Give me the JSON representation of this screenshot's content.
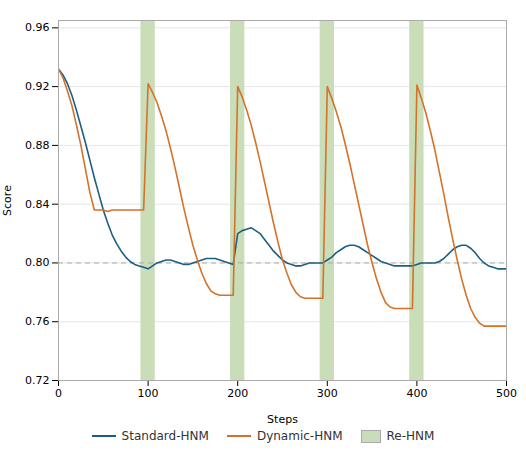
{
  "chart_data": {
    "type": "line",
    "title": "",
    "xlabel": "Steps",
    "ylabel": "Score",
    "xlim": [
      0,
      500
    ],
    "xticks": [
      0,
      100,
      200,
      300,
      400,
      500
    ],
    "ylim": [
      0.72,
      0.965
    ],
    "yticks": [
      0.72,
      0.76,
      {
        "value": 0.8,
        "label": "0.80"
      },
      0.84,
      0.88,
      0.92,
      0.96
    ],
    "grid": "y",
    "legend": "bottom",
    "x": [
      0,
      5,
      10,
      15,
      20,
      25,
      30,
      35,
      40,
      45,
      50,
      55,
      60,
      65,
      70,
      75,
      80,
      85,
      90,
      95,
      100,
      105,
      110,
      115,
      120,
      125,
      130,
      135,
      140,
      145,
      150,
      155,
      160,
      165,
      170,
      175,
      180,
      185,
      190,
      195,
      200,
      205,
      210,
      215,
      220,
      225,
      230,
      235,
      240,
      245,
      250,
      255,
      260,
      265,
      270,
      275,
      280,
      285,
      290,
      295,
      300,
      305,
      310,
      315,
      320,
      325,
      330,
      335,
      340,
      345,
      350,
      355,
      360,
      365,
      370,
      375,
      380,
      385,
      390,
      395,
      400,
      405,
      410,
      415,
      420,
      425,
      430,
      435,
      440,
      445,
      450,
      455,
      460,
      465,
      470,
      475,
      480,
      485,
      490,
      495,
      500
    ],
    "series": [
      {
        "name": "Standard-HNM",
        "color": "#1c5f82",
        "values": [
          0.932,
          0.928,
          0.922,
          0.914,
          0.904,
          0.893,
          0.882,
          0.87,
          0.858,
          0.847,
          0.836,
          0.827,
          0.819,
          0.813,
          0.808,
          0.804,
          0.801,
          0.799,
          0.798,
          0.797,
          0.796,
          0.798,
          0.8,
          0.801,
          0.802,
          0.802,
          0.801,
          0.8,
          0.799,
          0.799,
          0.8,
          0.801,
          0.802,
          0.803,
          0.803,
          0.803,
          0.802,
          0.801,
          0.8,
          0.799,
          0.82,
          0.822,
          0.823,
          0.824,
          0.822,
          0.82,
          0.816,
          0.812,
          0.808,
          0.805,
          0.802,
          0.8,
          0.799,
          0.798,
          0.798,
          0.799,
          0.8,
          0.8,
          0.8,
          0.8,
          0.802,
          0.804,
          0.807,
          0.809,
          0.811,
          0.812,
          0.812,
          0.811,
          0.809,
          0.807,
          0.805,
          0.803,
          0.801,
          0.8,
          0.799,
          0.798,
          0.798,
          0.798,
          0.798,
          0.798,
          0.799,
          0.8,
          0.8,
          0.8,
          0.8,
          0.801,
          0.803,
          0.806,
          0.809,
          0.811,
          0.812,
          0.812,
          0.81,
          0.807,
          0.803,
          0.8,
          0.798,
          0.797,
          0.796,
          0.796,
          0.796
        ]
      },
      {
        "name": "Dynamic-HNM",
        "color": "#d4722a",
        "values": [
          0.932,
          0.926,
          0.917,
          0.907,
          0.894,
          0.88,
          0.864,
          0.848,
          0.836,
          0.836,
          0.836,
          0.835,
          0.836,
          0.836,
          0.836,
          0.836,
          0.836,
          0.836,
          0.836,
          0.836,
          0.922,
          0.916,
          0.909,
          0.9,
          0.89,
          0.878,
          0.865,
          0.851,
          0.837,
          0.824,
          0.812,
          0.802,
          0.793,
          0.786,
          0.781,
          0.779,
          0.778,
          0.778,
          0.778,
          0.778,
          0.92,
          0.913,
          0.904,
          0.894,
          0.882,
          0.869,
          0.855,
          0.841,
          0.827,
          0.814,
          0.802,
          0.793,
          0.785,
          0.78,
          0.777,
          0.776,
          0.776,
          0.776,
          0.776,
          0.776,
          0.92,
          0.912,
          0.903,
          0.893,
          0.881,
          0.868,
          0.854,
          0.84,
          0.826,
          0.812,
          0.8,
          0.789,
          0.78,
          0.773,
          0.77,
          0.769,
          0.769,
          0.769,
          0.769,
          0.769,
          0.921,
          0.912,
          0.902,
          0.89,
          0.877,
          0.862,
          0.847,
          0.831,
          0.816,
          0.802,
          0.789,
          0.778,
          0.769,
          0.763,
          0.759,
          0.757,
          0.757,
          0.757,
          0.757,
          0.757,
          0.757
        ]
      }
    ],
    "bands": {
      "name": "Re-HNM",
      "color": "#c9ddb9",
      "ranges": [
        [
          92,
          108
        ],
        [
          192,
          208
        ],
        [
          292,
          308
        ],
        [
          392,
          408
        ]
      ]
    },
    "hline": {
      "y": 0.8,
      "color": "#aaaaaa",
      "line_style": "dashed"
    }
  }
}
